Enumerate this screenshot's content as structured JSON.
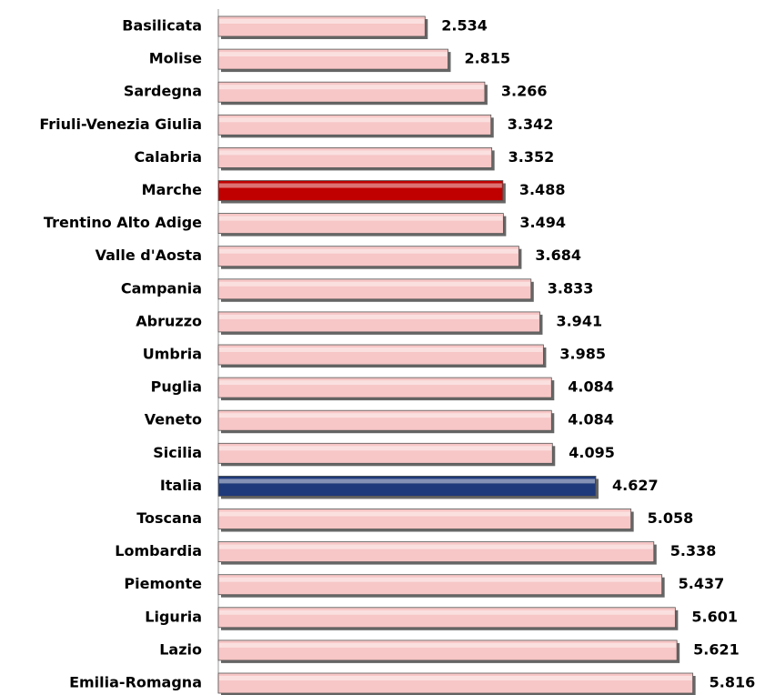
{
  "chart_data": {
    "type": "bar",
    "orientation": "horizontal",
    "categories": [
      "Basilicata",
      "Molise",
      "Sardegna",
      "Friuli-Venezia Giulia",
      "Calabria",
      "Marche",
      "Trentino Alto Adige",
      "Valle d'Aosta",
      "Campania",
      "Abruzzo",
      "Umbria",
      "Puglia",
      "Veneto",
      "Sicilia",
      "Italia",
      "Toscana",
      "Lombardia",
      "Piemonte",
      "Liguria",
      "Lazio",
      "Emilia-Romagna"
    ],
    "values": [
      2.534,
      2.815,
      3.266,
      3.342,
      3.352,
      3.488,
      3.494,
      3.684,
      3.833,
      3.941,
      3.985,
      4.084,
      4.084,
      4.095,
      4.627,
      5.058,
      5.338,
      5.437,
      5.601,
      5.621,
      5.816
    ],
    "colors": [
      "#f7c6c6",
      "#f7c6c6",
      "#f7c6c6",
      "#f7c6c6",
      "#f7c6c6",
      "#c00000",
      "#f7c6c6",
      "#f7c6c6",
      "#f7c6c6",
      "#f7c6c6",
      "#f7c6c6",
      "#f7c6c6",
      "#f7c6c6",
      "#f7c6c6",
      "#1f3a7a",
      "#f7c6c6",
      "#f7c6c6",
      "#f7c6c6",
      "#f7c6c6",
      "#f7c6c6",
      "#f7c6c6"
    ],
    "xlim": [
      0,
      6.5
    ]
  }
}
